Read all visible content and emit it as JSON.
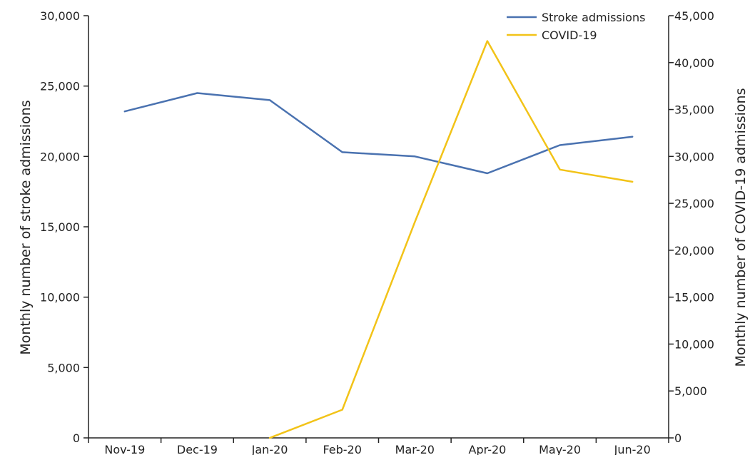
{
  "chart_data": {
    "type": "line",
    "categories": [
      "Nov-19",
      "Dec-19",
      "Jan-20",
      "Feb-20",
      "Mar-20",
      "Apr-20",
      "May-20",
      "Jun-20"
    ],
    "series": [
      {
        "name": "Stroke admissions",
        "axis": "left",
        "color": "#4a72b0",
        "values": [
          23200,
          24500,
          24000,
          20300,
          20000,
          18800,
          20800,
          21400
        ]
      },
      {
        "name": "COVID-19",
        "axis": "right",
        "color": "#f2c318",
        "values": [
          null,
          null,
          0,
          3000,
          23000,
          42300,
          28600,
          27300
        ]
      }
    ],
    "ylabel": "Monthly number of stroke admissions",
    "y2label": "Monthly number of COVID-19 admissions",
    "ylim": [
      0,
      30000
    ],
    "y2lim": [
      0,
      45000
    ],
    "yticks": [
      "0",
      "5,000",
      "10,000",
      "15,000",
      "20,000",
      "25,000",
      "30,000"
    ],
    "y2ticks": [
      "0",
      "5,000",
      "10,000",
      "15,000",
      "20,000",
      "25,000",
      "30,000",
      "35,000",
      "40,000",
      "45,000"
    ],
    "grid": false,
    "legend_position": "top-right"
  }
}
